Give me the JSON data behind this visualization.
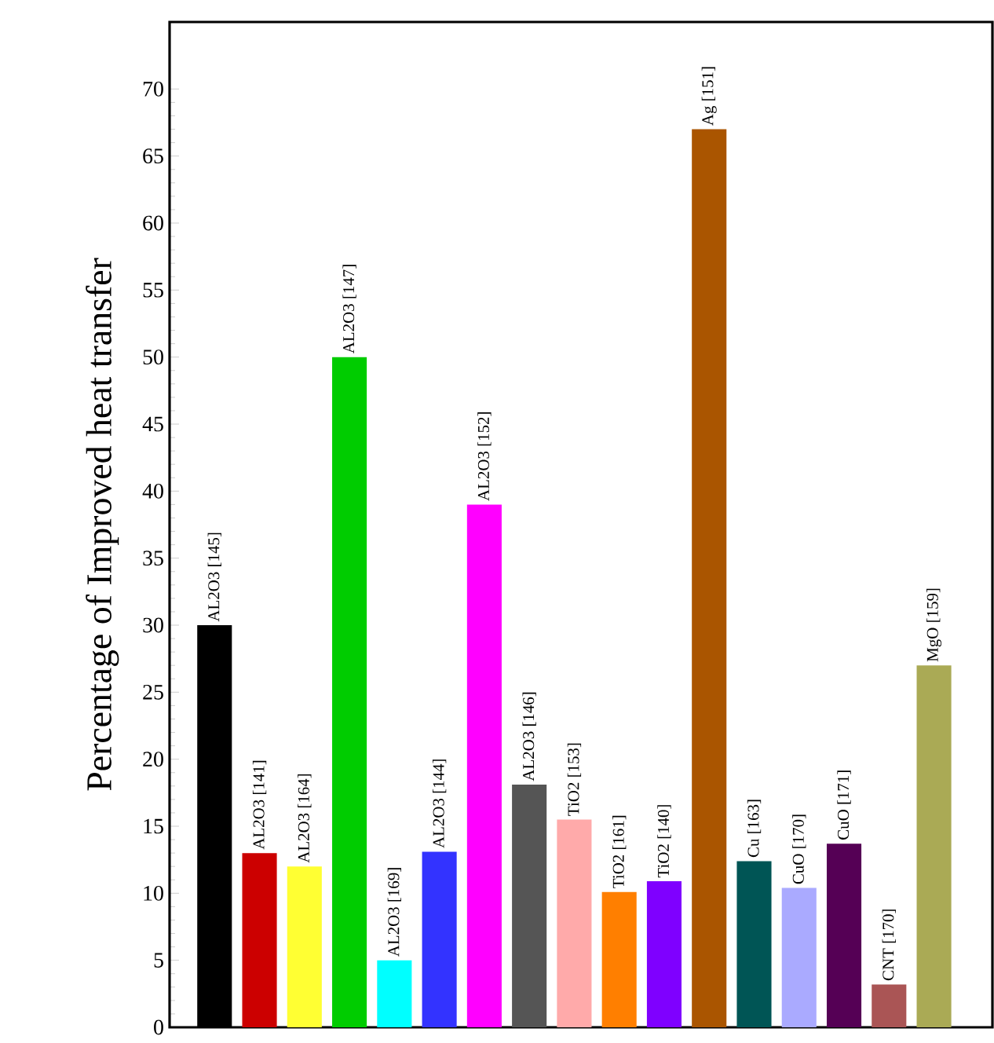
{
  "chart_data": {
    "type": "bar",
    "ylabel": "Percentage of Improved heat transfer",
    "categories": [
      "AL2O3 [145]",
      "AL2O3 [141]",
      "AL2O3 [164]",
      "AL2O3 [147]",
      "AL2O3 [169]",
      "AL2O3 [144]",
      "AL2O3 [152]",
      "AL2O3 [146]",
      "TiO2 [153]",
      "TiO2 [161]",
      "TiO2 [140]",
      "Ag [151]",
      "Cu [163]",
      "CuO [170]",
      "CuO [171]",
      "CNT [170]",
      "MgO [159]"
    ],
    "values": [
      30,
      13,
      12,
      50,
      5,
      13.1,
      39,
      18.1,
      15.5,
      10.1,
      10.9,
      67,
      12.4,
      10.4,
      13.7,
      3.2,
      27
    ],
    "colors": [
      "#000000",
      "#cc0000",
      "#ffff33",
      "#00cc00",
      "#00ffff",
      "#3333ff",
      "#ff00ff",
      "#555555",
      "#ffaaaa",
      "#ff7f00",
      "#7f00ff",
      "#aa5500",
      "#005555",
      "#aaaaff",
      "#550055",
      "#aa5555",
      "#aaaa55"
    ],
    "ylim": [
      0,
      75
    ],
    "yticks": [
      0,
      5,
      10,
      15,
      20,
      25,
      30,
      35,
      40,
      45,
      50,
      55,
      60,
      65,
      70
    ],
    "grid": false
  }
}
